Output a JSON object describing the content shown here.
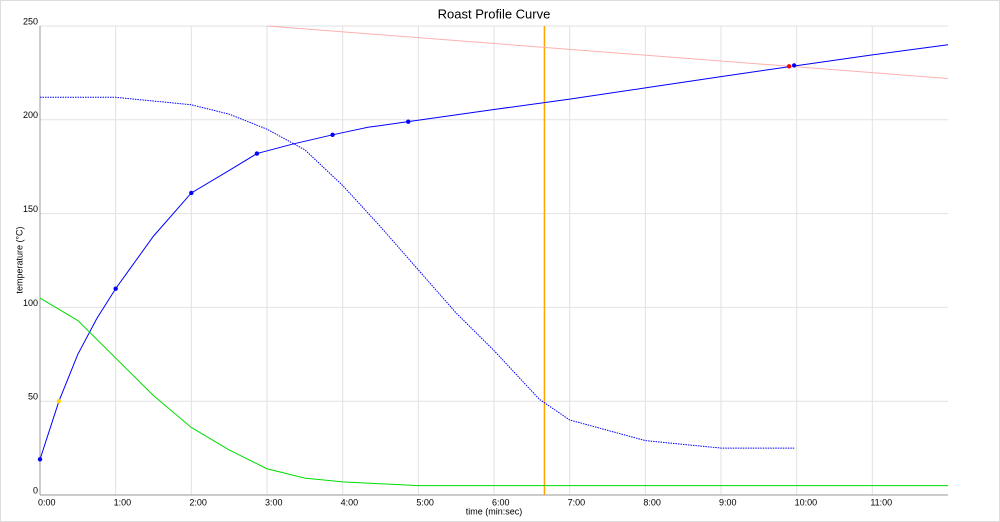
{
  "chart_data": {
    "type": "line",
    "title": "Roast Profile Curve",
    "x_label": "time (min:sec)",
    "y_label": "temperature (°C)",
    "xlim": [
      0,
      720
    ],
    "ylim": [
      0,
      250
    ],
    "xticks": [
      {
        "value": 0,
        "label": "0:00"
      },
      {
        "value": 60,
        "label": "1:00"
      },
      {
        "value": 120,
        "label": "2:00"
      },
      {
        "value": 180,
        "label": "3:00"
      },
      {
        "value": 240,
        "label": "4:00"
      },
      {
        "value": 300,
        "label": "5:00"
      },
      {
        "value": 360,
        "label": "6:00"
      },
      {
        "value": 420,
        "label": "7:00"
      },
      {
        "value": 480,
        "label": "8:00"
      },
      {
        "value": 540,
        "label": "9:00"
      },
      {
        "value": 600,
        "label": "10:00"
      },
      {
        "value": 660,
        "label": "11:00"
      }
    ],
    "yticks": [
      0,
      50,
      100,
      150,
      200,
      250
    ],
    "grid": true,
    "series": [
      {
        "color": "#0000ff",
        "style": "solid",
        "x": [
          0,
          15,
          30,
          45,
          60,
          90,
          120,
          150,
          172,
          200,
          232,
          260,
          292,
          360,
          420,
          480,
          540,
          596,
          660,
          720
        ],
        "values": [
          19,
          50,
          75,
          94,
          110,
          138,
          161,
          173,
          182,
          187,
          192,
          196,
          199,
          205.5,
          211,
          217,
          223,
          228.5,
          234.6,
          240
        ]
      },
      {
        "color": "#0000ff",
        "style": "dotted",
        "x": [
          0,
          60,
          120,
          150,
          180,
          210,
          240,
          270,
          300,
          330,
          360,
          396,
          420,
          480,
          540,
          598
        ],
        "values": [
          212,
          212,
          208,
          203,
          195,
          184,
          165,
          143,
          120,
          97,
          77,
          51,
          40,
          29,
          25,
          25
        ]
      },
      {
        "color": "#00dd00",
        "style": "solid",
        "x": [
          0,
          30,
          60,
          90,
          120,
          150,
          180,
          210,
          240,
          300,
          360,
          720
        ],
        "values": [
          105,
          93,
          73,
          53,
          36,
          24,
          14,
          9,
          7,
          5,
          5,
          5
        ]
      },
      {
        "color": "#ffb0b0",
        "style": "solid",
        "x": [
          180,
          720
        ],
        "values": [
          250,
          222
        ]
      },
      {
        "color": "#0000ff",
        "style": "markers",
        "x": [
          0,
          60,
          120,
          172,
          232,
          292,
          598
        ],
        "values": [
          19,
          110,
          161,
          182,
          192,
          199,
          229
        ]
      },
      {
        "color": "#ffd700",
        "style": "markers",
        "x": [
          15
        ],
        "values": [
          50
        ]
      },
      {
        "color": "#ff0000",
        "style": "markers",
        "x": [
          594
        ],
        "values": [
          228.5
        ]
      }
    ],
    "vlines": [
      {
        "x": 400,
        "color": "#ffa500"
      }
    ]
  }
}
